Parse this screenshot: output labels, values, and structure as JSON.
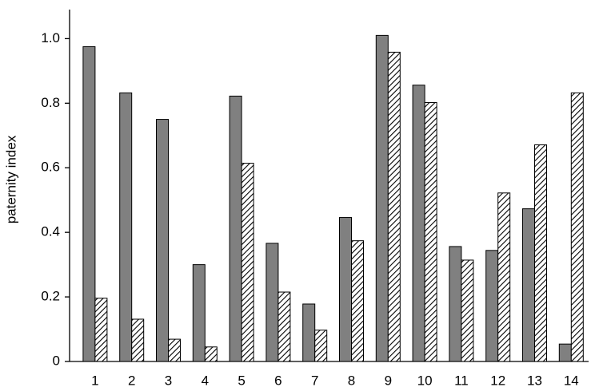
{
  "chart_data": {
    "type": "bar",
    "y_label": "paternity index",
    "categories": [
      "1",
      "2",
      "3",
      "4",
      "5",
      "6",
      "7",
      "8",
      "9",
      "10",
      "11",
      "12",
      "13",
      "14"
    ],
    "series": [
      {
        "color": "#808080",
        "fill": "solid",
        "values": [
          0.975,
          0.832,
          0.75,
          0.3,
          0.822,
          0.366,
          0.178,
          0.446,
          1.01,
          0.856,
          0.356,
          0.344,
          0.473,
          0.054
        ]
      },
      {
        "color": "#000000",
        "fill": "hatch",
        "values": [
          0.196,
          0.131,
          0.069,
          0.045,
          0.614,
          0.215,
          0.097,
          0.374,
          0.958,
          0.802,
          0.314,
          0.522,
          0.671,
          0.832
        ]
      }
    ],
    "ylim": [
      0,
      1.09
    ],
    "yticks": [
      0,
      0.2,
      0.4,
      0.6,
      0.8,
      {
        "value": 1,
        "label": "1.0"
      }
    ],
    "grid": false
  }
}
